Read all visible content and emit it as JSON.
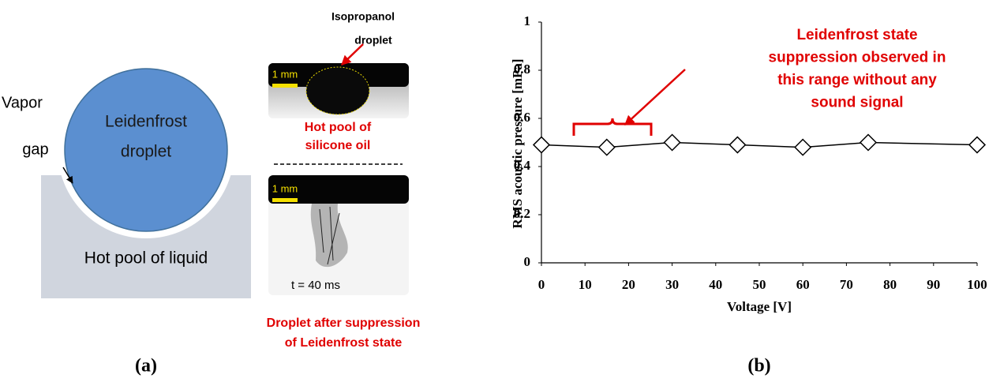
{
  "panel_a": {
    "droplet_label": [
      "Leidenfrost",
      "droplet"
    ],
    "vapor_label": [
      "Vapor",
      "gap"
    ],
    "pool_label": "Hot pool of liquid",
    "isopropanol_label": [
      "Isopropanol",
      "droplet"
    ],
    "scale_top": "1 mm",
    "scale_bottom": "1 mm",
    "silicone_label": [
      "Hot pool of",
      "silicone oil"
    ],
    "time_label": "t = 40 ms",
    "caption": [
      "Droplet after suppression",
      "of Leidenfrost state"
    ],
    "panel_label": "(a)"
  },
  "chart_data": {
    "type": "line",
    "color": "#000000",
    "x": [
      0,
      15,
      30,
      45,
      60,
      75,
      100
    ],
    "values": [
      0.49,
      0.48,
      0.5,
      0.49,
      0.48,
      0.5,
      0.49
    ],
    "xlim": [
      0,
      100
    ],
    "xticks": [
      0,
      10,
      20,
      30,
      40,
      50,
      60,
      70,
      80,
      90,
      100
    ],
    "ylim": [
      0,
      1
    ],
    "yticks": [
      0,
      0.2,
      0.4,
      0.6,
      0.8,
      1
    ],
    "xlabel": "Voltage [V]",
    "ylabel": "RMS acoustic pressure [mPa]",
    "annotation": [
      "Leidenfrost state",
      "suppression observed in",
      "this range without any",
      "sound signal"
    ],
    "panel_label": "(b)"
  }
}
